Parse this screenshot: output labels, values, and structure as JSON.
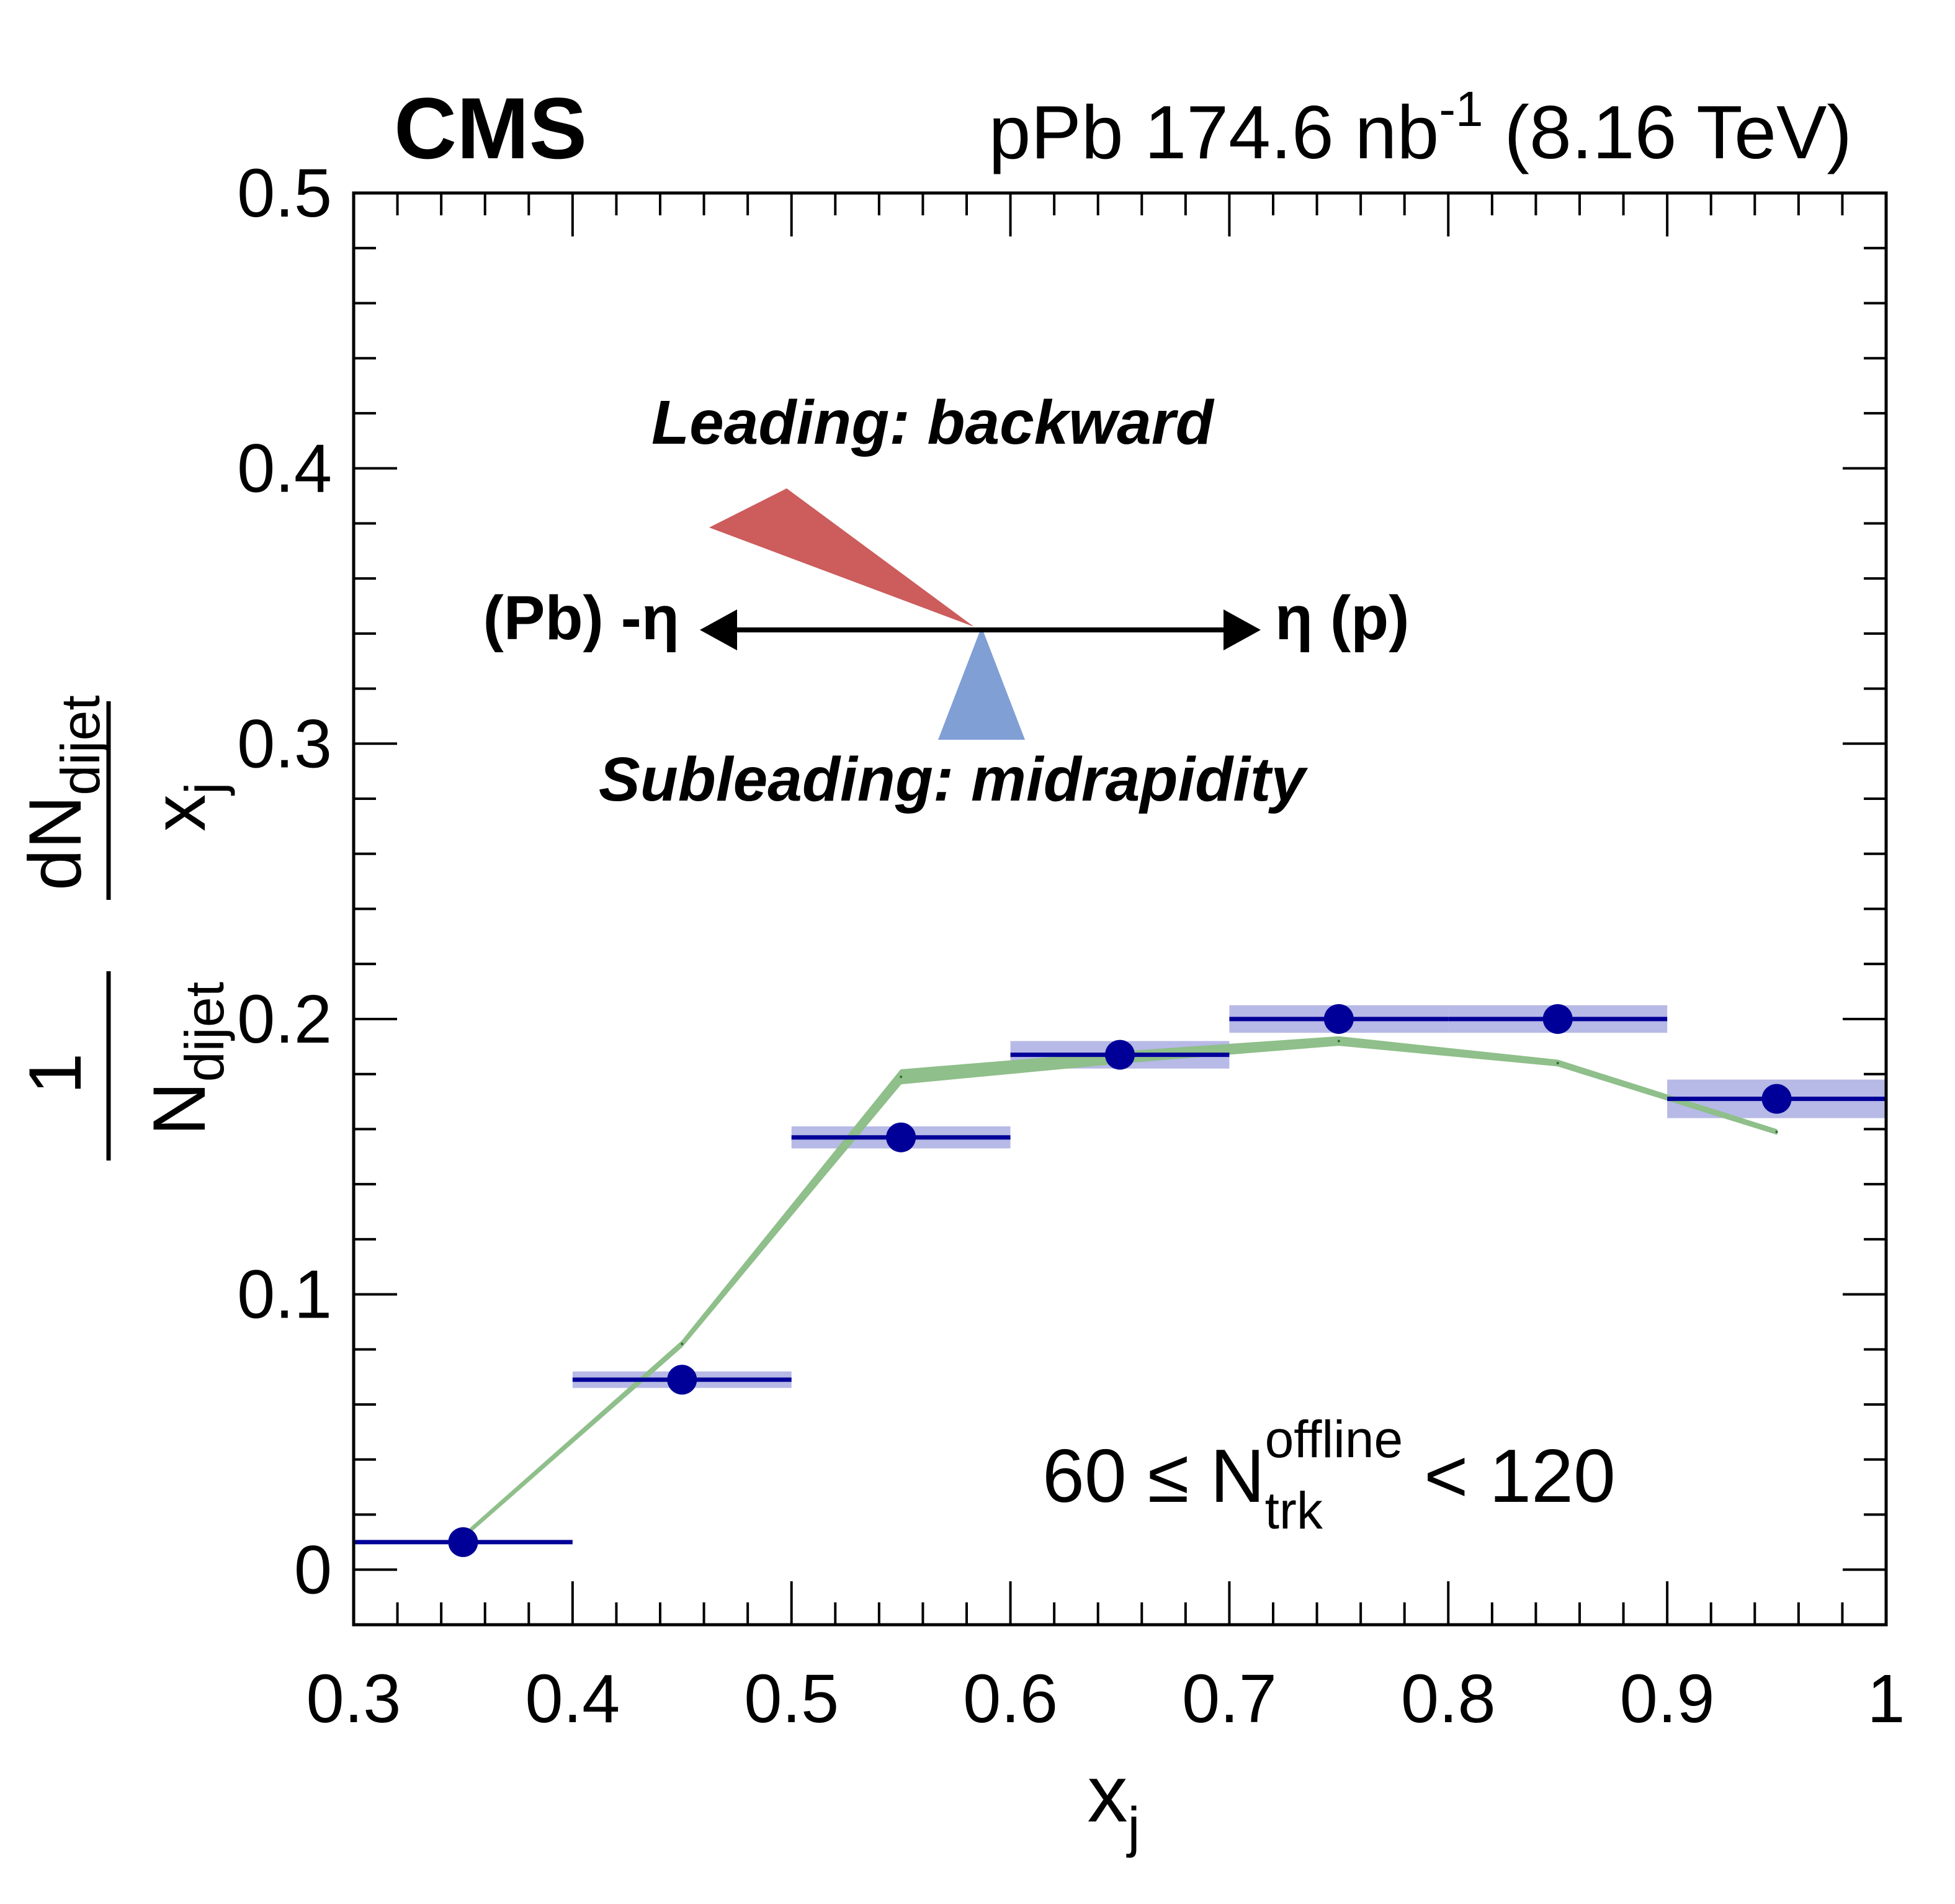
{
  "chart_data": {
    "type": "scatter",
    "experiment_label": "CMS",
    "luminosity_label": {
      "prefix": "pPb 174.6 nb",
      "exponent": "-1",
      "suffix": " (8.16 TeV)"
    },
    "xlabel": {
      "main": "x",
      "sub": "j"
    },
    "ylabel": {
      "numerator": "1",
      "denominator_main": "N",
      "denominator_sub": "dijet",
      "frac_numerator_main": "dN",
      "frac_numerator_sub": "dijet",
      "frac_denominator_main": "x",
      "frac_denominator_sub": "j"
    },
    "xlim": [
      0.3,
      1.0
    ],
    "ylim": [
      -0.02,
      0.5
    ],
    "x_ticks": [
      "0.3",
      "0.4",
      "0.5",
      "0.6",
      "0.7",
      "0.8",
      "0.9",
      "1"
    ],
    "y_ticks": [
      "0",
      "0.1",
      "0.2",
      "0.3",
      "0.4",
      "0.5"
    ],
    "selection_label": {
      "prefix": "60 ≤ N",
      "superscript": "offline",
      "subscript": "trk",
      "suffix": " < 120"
    },
    "data_series": {
      "color": "#000099",
      "band_color": "#7b7fd1",
      "points": [
        {
          "x": 0.35,
          "x_low": 0.3,
          "x_high": 0.4,
          "y": 0.01,
          "sys": 0.0
        },
        {
          "x": 0.45,
          "x_low": 0.4,
          "x_high": 0.5,
          "y": 0.069,
          "sys": 0.003
        },
        {
          "x": 0.55,
          "x_low": 0.5,
          "x_high": 0.6,
          "y": 0.157,
          "sys": 0.004
        },
        {
          "x": 0.65,
          "x_low": 0.6,
          "x_high": 0.7,
          "y": 0.187,
          "sys": 0.005
        },
        {
          "x": 0.75,
          "x_low": 0.7,
          "x_high": 0.8,
          "y": 0.2,
          "sys": 0.005
        },
        {
          "x": 0.85,
          "x_low": 0.8,
          "x_high": 0.9,
          "y": 0.2,
          "sys": 0.005
        },
        {
          "x": 0.95,
          "x_low": 0.9,
          "x_high": 1.0,
          "y": 0.171,
          "sys": 0.007
        }
      ]
    },
    "model_series": {
      "color": "#8fbf8a",
      "points": [
        {
          "x": 0.35,
          "y": 0.012,
          "err": 0.0005
        },
        {
          "x": 0.45,
          "y": 0.082,
          "err": 0.001
        },
        {
          "x": 0.55,
          "y": 0.179,
          "err": 0.0025
        },
        {
          "x": 0.65,
          "y": 0.186,
          "err": 0.002
        },
        {
          "x": 0.75,
          "y": 0.192,
          "err": 0.0015
        },
        {
          "x": 0.85,
          "y": 0.184,
          "err": 0.001
        },
        {
          "x": 0.95,
          "y": 0.159,
          "err": 0.0008
        }
      ]
    },
    "diagram": {
      "leading_label": "Leading: backward",
      "leading_color": "#cd5c5c",
      "subleading_label": "Subleading: midrapidity",
      "subleading_color": "#7f9fd5",
      "left_label": "(Pb) -η",
      "right_label": "η (p)"
    }
  }
}
